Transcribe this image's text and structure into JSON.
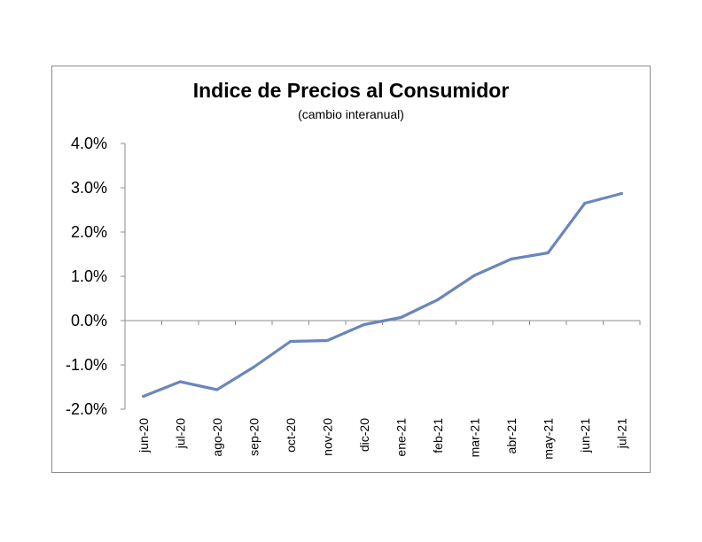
{
  "chart_data": {
    "type": "line",
    "title": "Indice de Precios al Consumidor",
    "subtitle": "(cambio interanual)",
    "xlabel": "",
    "ylabel": "",
    "ylim": [
      -2.0,
      4.0
    ],
    "y_ticks": [
      "4.0%",
      "3.0%",
      "2.0%",
      "1.0%",
      "0.0%",
      "-1.0%",
      "-2.0%"
    ],
    "y_tick_values": [
      4.0,
      3.0,
      2.0,
      1.0,
      0.0,
      -1.0,
      -2.0
    ],
    "categories": [
      "jun-20",
      "jul-20",
      "ago-20",
      "sep-20",
      "oct-20",
      "nov-20",
      "dic-20",
      "ene-21",
      "feb-21",
      "mar-21",
      "abr-21",
      "may-21",
      "jun-21",
      "jul-21"
    ],
    "series": [
      {
        "values": [
          -1.71,
          -1.38,
          -1.56,
          -1.05,
          -0.47,
          -0.45,
          -0.09,
          0.07,
          0.47,
          1.02,
          1.39,
          1.53,
          2.65,
          2.87
        ],
        "color": "#6a86bb"
      }
    ],
    "grid": false,
    "legend": "none"
  }
}
